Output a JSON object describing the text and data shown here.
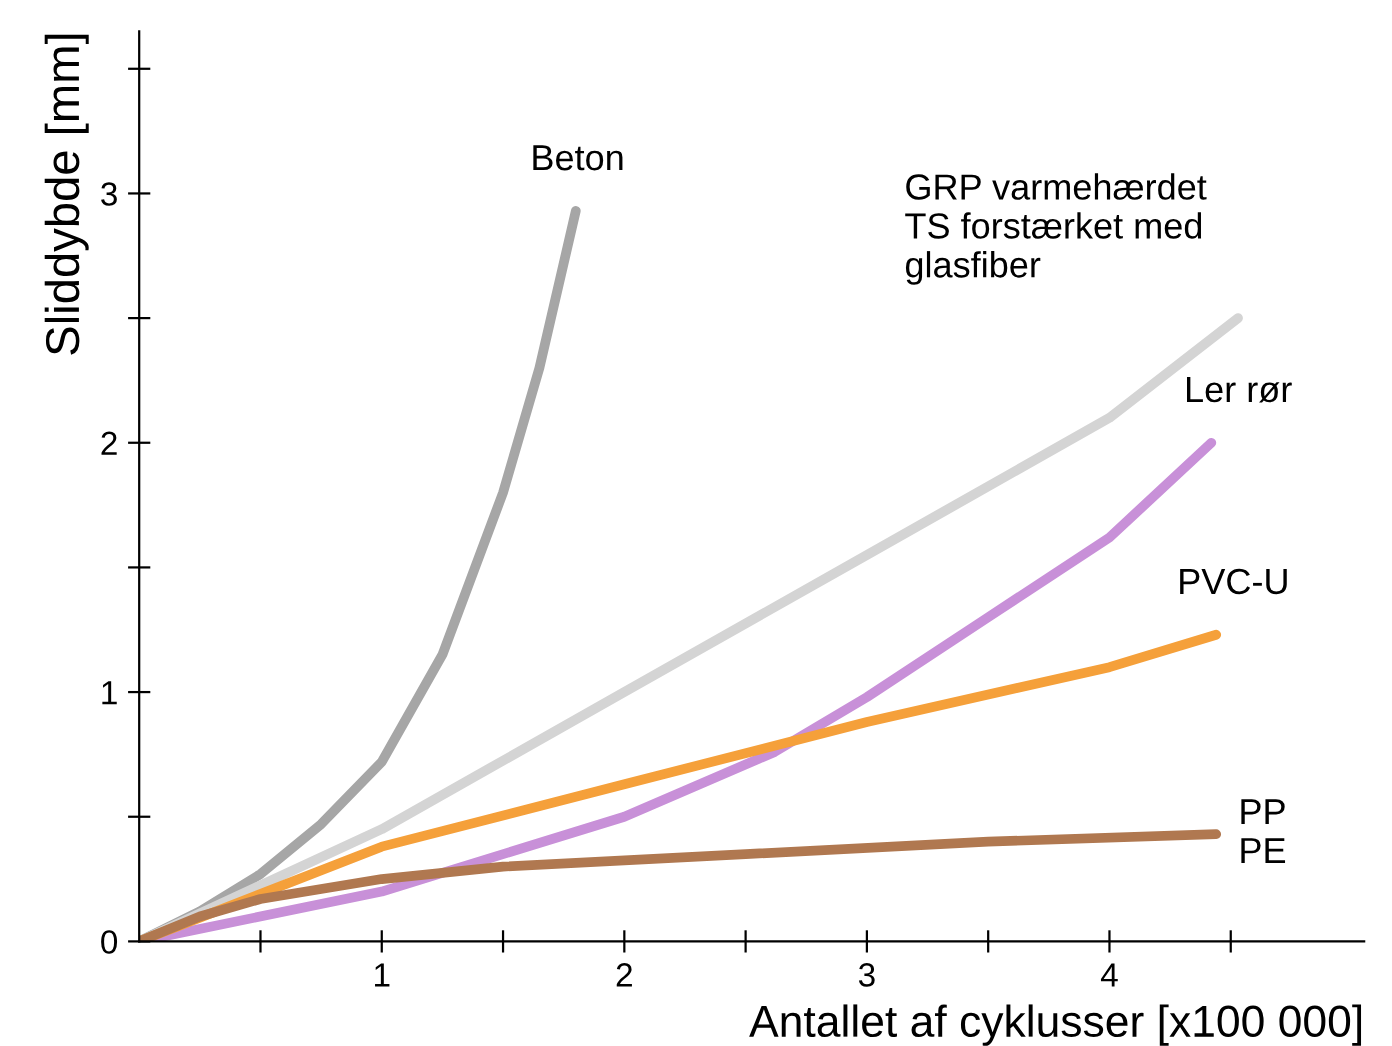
{
  "chart_data": {
    "type": "line",
    "xlabel": "Antallet af cyklusser [x100 000]",
    "ylabel": "Sliddybde [mm]",
    "xlim": [
      0,
      5.05
    ],
    "ylim": [
      0,
      3.65
    ],
    "xticks": [
      {
        "value": 0.5,
        "label": null
      },
      1,
      {
        "value": 1.5,
        "label": null
      },
      2,
      {
        "value": 2.5,
        "label": null
      },
      3,
      {
        "value": 3.5,
        "label": null
      },
      4,
      {
        "value": 4.5,
        "label": null
      }
    ],
    "yticks": [
      0,
      {
        "value": 0.5,
        "label": null
      },
      1,
      {
        "value": 1.5,
        "label": null
      },
      2,
      {
        "value": 2.5,
        "label": null
      },
      3,
      {
        "value": 3.5,
        "label": null
      }
    ],
    "grid": false,
    "legend": false,
    "marker": "none",
    "line_style": "solid",
    "series": [
      {
        "name": "Beton",
        "color": "#a6a6a6",
        "x": [
          0,
          0.25,
          0.5,
          0.75,
          1.0,
          1.25,
          1.5,
          1.65,
          1.8
        ],
        "values": [
          0,
          0.12,
          0.27,
          0.47,
          0.72,
          1.15,
          1.8,
          2.3,
          2.93
        ]
      },
      {
        "name": "GRP varmehærdet\nTS forstærket med\nglasfiber",
        "color": "#d4d4d4",
        "x": [
          0,
          1,
          2,
          3,
          4,
          4.53
        ],
        "values": [
          0,
          0.45,
          1.0,
          1.55,
          2.1,
          2.5
        ]
      },
      {
        "name": "Ler rør",
        "color": "#c890d8",
        "x": [
          0,
          1,
          2,
          2.62,
          3,
          3.5,
          4,
          4.42
        ],
        "values": [
          0,
          0.2,
          0.5,
          0.76,
          0.98,
          1.3,
          1.62,
          2.0
        ]
      },
      {
        "name": "PVC-U",
        "color": "#f5a03a",
        "x": [
          0,
          1,
          2,
          3,
          4,
          4.44
        ],
        "values": [
          0,
          0.38,
          0.63,
          0.88,
          1.1,
          1.23
        ]
      },
      {
        "name": "PP\nPE",
        "color": "#b07850",
        "x": [
          0,
          0.25,
          0.5,
          1,
          1.5,
          2.5,
          3.5,
          4.44
        ],
        "values": [
          0,
          0.1,
          0.17,
          0.25,
          0.3,
          0.35,
          0.4,
          0.43
        ]
      }
    ]
  }
}
